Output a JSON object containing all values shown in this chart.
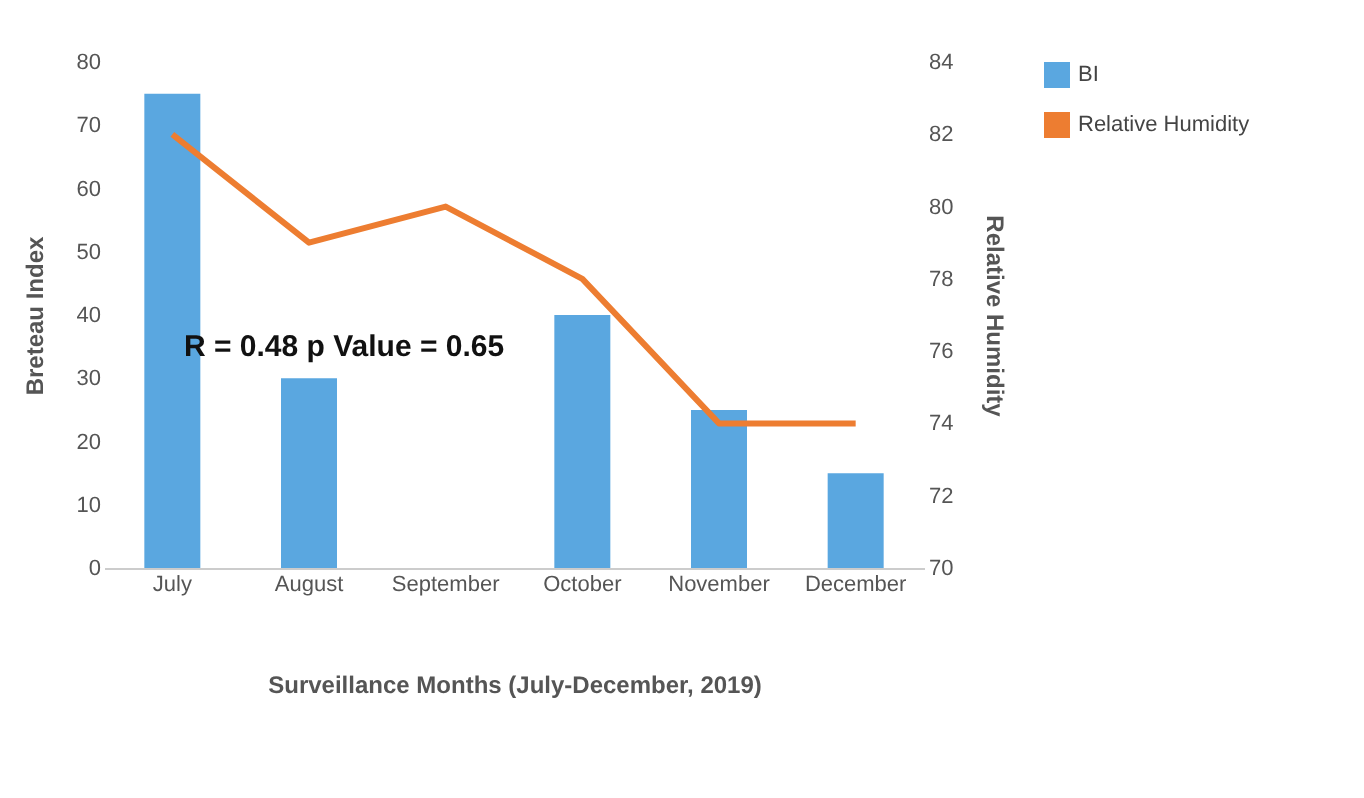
{
  "chart_data": {
    "type": "bar",
    "xlabel": "Surveillance Months (July-December, 2019)",
    "ylabel": "Breteau Index",
    "y2label": "Relative Humidity",
    "categories": [
      "July",
      "August",
      "September",
      "October",
      "November",
      "December"
    ],
    "series": [
      {
        "name": "BI",
        "color": "#5aa7e0",
        "values": [
          75,
          30,
          0,
          40,
          25,
          15
        ]
      },
      {
        "name": "Relative Humidity",
        "type": "line",
        "axis": "y2",
        "color": "#ed7d31",
        "values": [
          82,
          79,
          80,
          78,
          74,
          74
        ]
      }
    ],
    "ylim": [
      0,
      80
    ],
    "yticks": [
      0,
      10,
      20,
      30,
      40,
      50,
      60,
      70,
      80
    ],
    "y2lim": [
      70,
      84
    ],
    "y2ticks": [
      70,
      72,
      74,
      76,
      78,
      80,
      82,
      84
    ],
    "legend": "right",
    "grid": false,
    "annotations": [
      "R = 0.48   p Value = 0.65"
    ]
  }
}
